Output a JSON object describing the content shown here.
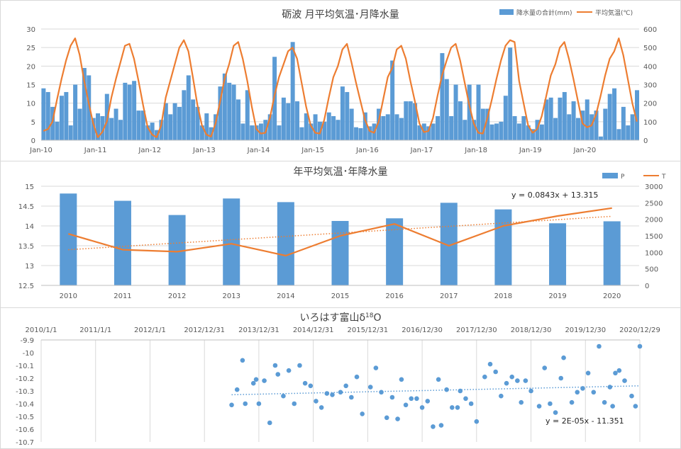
{
  "chart_data": [
    {
      "type": "bar+line",
      "title": "砺波 月平均気温･月降水量",
      "legend_position": "top-right",
      "legend": [
        "降水量の合計(mm)",
        "平均気温(℃)"
      ],
      "x_tick_labels": [
        "Jan-10",
        "Jan-11",
        "Jan-12",
        "Jan-13",
        "Jan-14",
        "Jan-15",
        "Jan-16",
        "Jan-17",
        "Jan-18",
        "Jan-19",
        "Jan-20"
      ],
      "y_left_ticks": [
        "0",
        "5",
        "10",
        "15",
        "20",
        "25",
        "30"
      ],
      "y_right_ticks": [
        "0",
        "100",
        "200",
        "300",
        "400",
        "500",
        "600"
      ],
      "ylim_left": [
        0,
        30
      ],
      "ylim_right": [
        0,
        600
      ],
      "grid": true,
      "months": 132,
      "precip": [
        280,
        260,
        180,
        100,
        240,
        260,
        80,
        300,
        170,
        390,
        350,
        120,
        145,
        130,
        250,
        120,
        170,
        110,
        310,
        300,
        320,
        160,
        160,
        80,
        95,
        55,
        110,
        200,
        140,
        200,
        180,
        270,
        350,
        220,
        180,
        80,
        145,
        70,
        140,
        290,
        360,
        310,
        300,
        220,
        90,
        270,
        80,
        80,
        90,
        110,
        140,
        450,
        80,
        230,
        200,
        530,
        210,
        70,
        145,
        90,
        140,
        100,
        100,
        150,
        130,
        110,
        290,
        260,
        170,
        70,
        65,
        150,
        75,
        90,
        170,
        130,
        140,
        430,
        140,
        120,
        210,
        210,
        200,
        80,
        90,
        75,
        90,
        130,
        470,
        330,
        130,
        300,
        210,
        110,
        300,
        110,
        300,
        170,
        170,
        85,
        90,
        100,
        240,
        500,
        130,
        90,
        130,
        80,
        60,
        110,
        85,
        220,
        230,
        120,
        230,
        260,
        140,
        210,
        120,
        160,
        220,
        140,
        160,
        20,
        170,
        250,
        280,
        60,
        180,
        80,
        140,
        270
      ],
      "temp": [
        2.5,
        3.0,
        5.0,
        11.0,
        16.5,
        21.5,
        25.5,
        27.5,
        23.0,
        16.0,
        10.0,
        4.5,
        0.8,
        2.2,
        5.0,
        11.5,
        16.5,
        21.0,
        25.5,
        26.0,
        22.0,
        16.0,
        9.5,
        3.5,
        1.5,
        0.8,
        4.0,
        11.5,
        16.0,
        20.5,
        25.0,
        27.0,
        24.0,
        17.0,
        9.5,
        4.0,
        1.5,
        1.0,
        4.5,
        10.5,
        16.5,
        20.5,
        25.5,
        26.5,
        22.0,
        16.0,
        9.0,
        3.0,
        1.8,
        2.0,
        6.0,
        12.0,
        17.0,
        20.5,
        24.0,
        25.0,
        22.0,
        15.5,
        9.0,
        4.0,
        2.0,
        1.8,
        5.5,
        11.5,
        17.0,
        20.0,
        24.5,
        26.0,
        21.0,
        15.5,
        10.5,
        5.5,
        2.5,
        2.0,
        5.0,
        11.0,
        17.0,
        19.5,
        24.5,
        25.5,
        22.0,
        16.0,
        10.5,
        4.5,
        2.2,
        2.5,
        6.0,
        12.0,
        17.5,
        21.5,
        25.0,
        26.0,
        21.5,
        15.5,
        9.5,
        4.5,
        2.0,
        1.8,
        6.0,
        11.0,
        16.5,
        21.5,
        25.5,
        27.0,
        26.5,
        16.0,
        10.0,
        4.0,
        2.0,
        3.0,
        6.5,
        12.0,
        17.5,
        20.5,
        25.0,
        26.5,
        22.0,
        16.5,
        10.5,
        4.5,
        3.5,
        4.0,
        7.0,
        12.0,
        17.5,
        22.0,
        24.0,
        27.5,
        23.0,
        16.5,
        10.0,
        5.0
      ]
    },
    {
      "type": "bar+line",
      "title": "年平均気温･年降水量",
      "legend_position": "top-right",
      "legend": [
        "P",
        "T"
      ],
      "categories": [
        "2010",
        "2011",
        "2012",
        "2013",
        "2014",
        "2015",
        "2016",
        "2017",
        "2018",
        "2019",
        "2020"
      ],
      "series": [
        {
          "name": "P",
          "axis": "right",
          "values": [
            2780,
            2560,
            2130,
            2630,
            2520,
            1950,
            2030,
            2500,
            2300,
            1880,
            1940
          ]
        },
        {
          "name": "T",
          "axis": "left",
          "values": [
            13.8,
            13.4,
            13.35,
            13.55,
            13.25,
            13.75,
            14.05,
            13.5,
            14.0,
            14.25,
            14.45
          ]
        }
      ],
      "trendline_label": "y = 0.0843x + 13.315",
      "trendline": {
        "intercept": 13.315,
        "slope": 0.0843
      },
      "y_left_ticks": [
        "12.5",
        "13",
        "13.5",
        "14",
        "14.5",
        "15"
      ],
      "y_right_ticks": [
        "0",
        "500",
        "1000",
        "1500",
        "2000",
        "2500",
        "3000"
      ],
      "ylim_left": [
        12.5,
        15
      ],
      "ylim_right": [
        0,
        3000
      ],
      "grid": true
    },
    {
      "type": "scatter",
      "title": "いろはす富山δ",
      "title_sup": "18",
      "title_tail": "O",
      "x_tick_labels": [
        "2010/1/1",
        "2011/1/1",
        "2012/1/1",
        "2012/12/31",
        "2013/12/31",
        "2014/12/31",
        "2015/12/31",
        "2016/12/30",
        "2017/12/30",
        "2018/12/30",
        "2019/12/30",
        "2020/12/29"
      ],
      "y_ticks": [
        "-9.9",
        "-10",
        "-10.1",
        "-10.2",
        "-10.3",
        "-10.4",
        "-10.5",
        "-10.6",
        "-10.7"
      ],
      "ylim": [
        -10.7,
        -9.9
      ],
      "trendline_label": "y = 2E-05x - 11.351",
      "trendline": {
        "start": -10.33,
        "end": -10.26
      },
      "points": [
        [
          3.5,
          -10.41
        ],
        [
          3.6,
          -10.29
        ],
        [
          3.7,
          -10.06
        ],
        [
          3.75,
          -10.4
        ],
        [
          3.9,
          -10.24
        ],
        [
          3.95,
          -10.21
        ],
        [
          4.0,
          -10.4
        ],
        [
          4.1,
          -10.22
        ],
        [
          4.2,
          -10.55
        ],
        [
          4.3,
          -10.1
        ],
        [
          4.35,
          -10.17
        ],
        [
          4.45,
          -10.34
        ],
        [
          4.55,
          -10.14
        ],
        [
          4.65,
          -10.4
        ],
        [
          4.75,
          -10.1
        ],
        [
          4.85,
          -10.24
        ],
        [
          4.95,
          -10.26
        ],
        [
          5.05,
          -10.38
        ],
        [
          5.15,
          -10.43
        ],
        [
          5.25,
          -10.32
        ],
        [
          5.35,
          -10.33
        ],
        [
          5.5,
          -10.31
        ],
        [
          5.6,
          -10.26
        ],
        [
          5.7,
          -10.35
        ],
        [
          5.8,
          -10.19
        ],
        [
          5.9,
          -10.48
        ],
        [
          6.05,
          -10.27
        ],
        [
          6.15,
          -10.12
        ],
        [
          6.25,
          -10.31
        ],
        [
          6.35,
          -10.51
        ],
        [
          6.45,
          -10.35
        ],
        [
          6.55,
          -10.52
        ],
        [
          6.62,
          -10.21
        ],
        [
          6.7,
          -10.41
        ],
        [
          6.8,
          -10.36
        ],
        [
          6.9,
          -10.36
        ],
        [
          7.0,
          -10.43
        ],
        [
          7.1,
          -10.38
        ],
        [
          7.2,
          -10.58
        ],
        [
          7.3,
          -10.21
        ],
        [
          7.35,
          -10.57
        ],
        [
          7.45,
          -10.29
        ],
        [
          7.55,
          -10.43
        ],
        [
          7.65,
          -10.43
        ],
        [
          7.7,
          -10.3
        ],
        [
          7.8,
          -10.36
        ],
        [
          7.9,
          -10.4
        ],
        [
          8.0,
          -10.54
        ],
        [
          8.15,
          -10.19
        ],
        [
          8.25,
          -10.09
        ],
        [
          8.35,
          -10.15
        ],
        [
          8.45,
          -10.34
        ],
        [
          8.55,
          -10.24
        ],
        [
          8.65,
          -10.19
        ],
        [
          8.75,
          -10.22
        ],
        [
          8.82,
          -10.39
        ],
        [
          8.9,
          -10.22
        ],
        [
          9.0,
          -10.3
        ],
        [
          9.15,
          -10.42
        ],
        [
          9.25,
          -10.12
        ],
        [
          9.35,
          -10.4
        ],
        [
          9.45,
          -10.47
        ],
        [
          9.55,
          -10.2
        ],
        [
          9.6,
          -10.04
        ],
        [
          9.75,
          -10.39
        ],
        [
          9.85,
          -10.31
        ],
        [
          9.95,
          -10.28
        ],
        [
          10.05,
          -10.16
        ],
        [
          10.15,
          -10.31
        ],
        [
          10.25,
          -9.95
        ],
        [
          10.35,
          -10.39
        ],
        [
          10.45,
          -10.27
        ],
        [
          10.5,
          -10.42
        ],
        [
          10.55,
          -10.16
        ],
        [
          10.62,
          -10.14
        ],
        [
          10.72,
          -10.22
        ],
        [
          10.85,
          -10.34
        ],
        [
          10.92,
          -10.42
        ],
        [
          11.0,
          -9.95
        ]
      ]
    }
  ]
}
